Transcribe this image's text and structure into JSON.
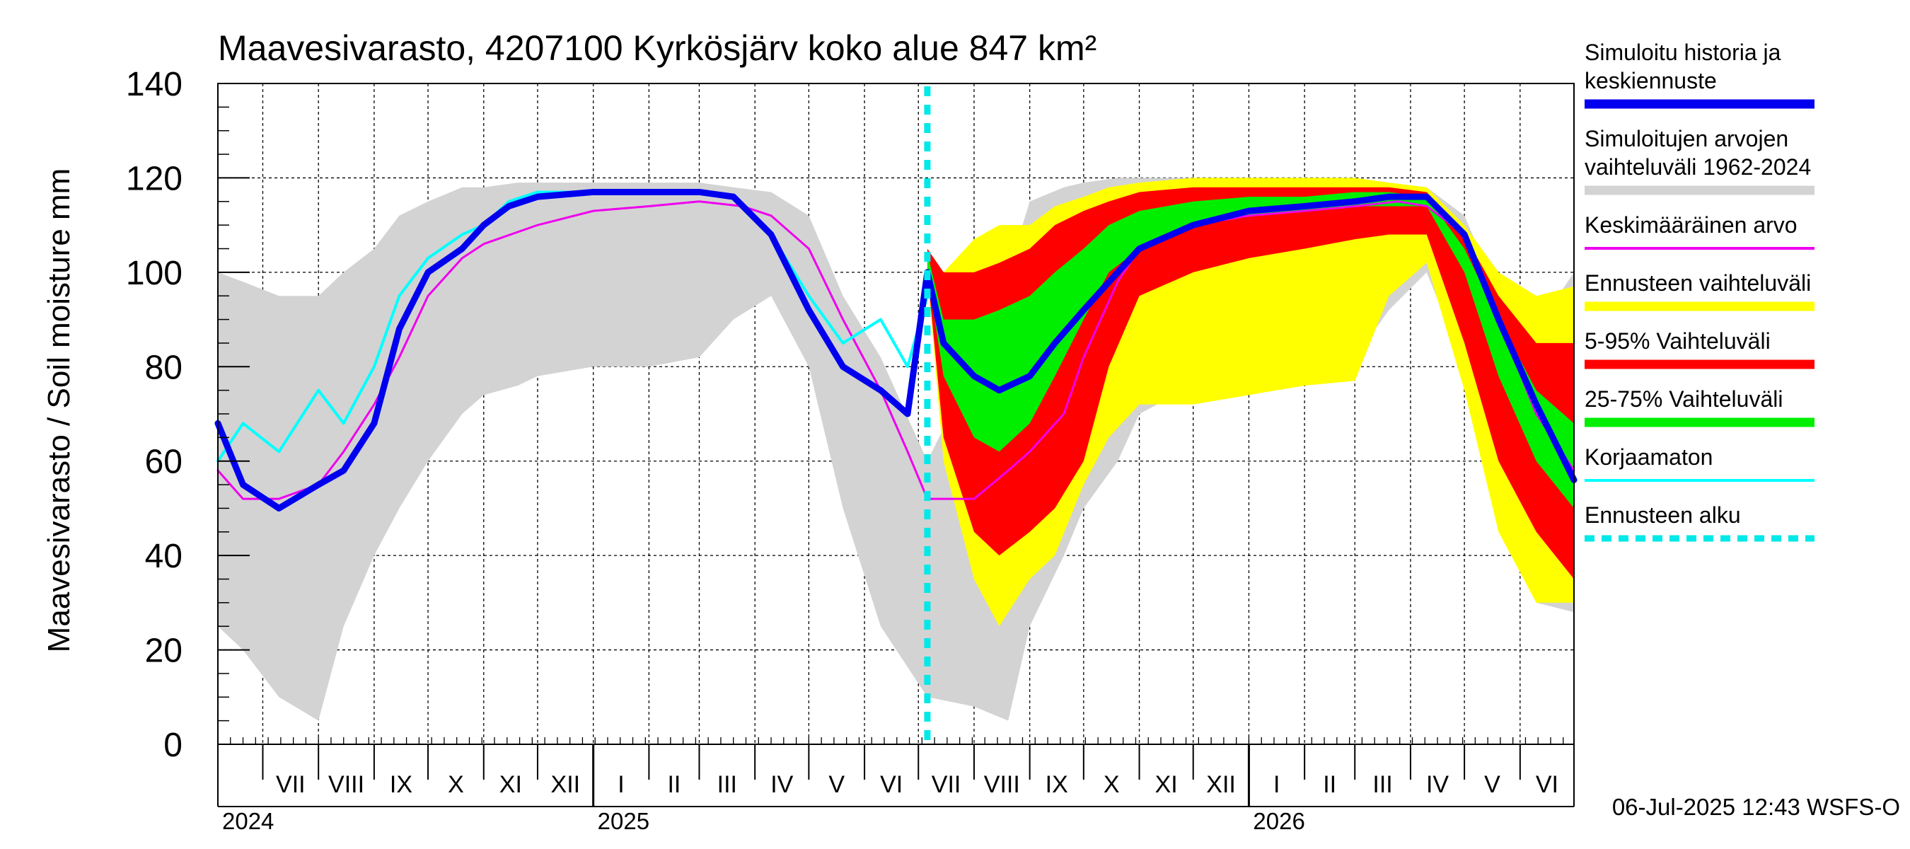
{
  "chart_data": {
    "type": "area",
    "title": "Maavesivarasto, 4207100 Kyrkösjärv koko alue 847 km²",
    "ylabel": "Maavesivarasto / Soil moisture   mm",
    "xlabel": "",
    "ylim": [
      0,
      140
    ],
    "yticks": [
      0,
      20,
      40,
      60,
      80,
      100,
      120,
      140
    ],
    "grid": true,
    "legend_placement": "right",
    "x_range": [
      "2024-06-06",
      "2026-07-01"
    ],
    "forecast_start": "2025-07-06",
    "footer": "06-Jul-2025 12:43 WSFS-O",
    "month_labels": [
      {
        "label": "VII",
        "start": "2024-07-01"
      },
      {
        "label": "VIII",
        "start": "2024-08-01"
      },
      {
        "label": "IX",
        "start": "2024-09-01"
      },
      {
        "label": "X",
        "start": "2024-10-01"
      },
      {
        "label": "XI",
        "start": "2024-11-01"
      },
      {
        "label": "XII",
        "start": "2024-12-01"
      },
      {
        "label": "I",
        "start": "2025-01-01"
      },
      {
        "label": "II",
        "start": "2025-02-01"
      },
      {
        "label": "III",
        "start": "2025-03-01"
      },
      {
        "label": "IV",
        "start": "2025-04-01"
      },
      {
        "label": "V",
        "start": "2025-05-01"
      },
      {
        "label": "VI",
        "start": "2025-06-01"
      },
      {
        "label": "VII",
        "start": "2025-07-01"
      },
      {
        "label": "VIII",
        "start": "2025-08-01"
      },
      {
        "label": "IX",
        "start": "2025-09-01"
      },
      {
        "label": "X",
        "start": "2025-10-01"
      },
      {
        "label": "XI",
        "start": "2025-11-01"
      },
      {
        "label": "XII",
        "start": "2025-12-01"
      },
      {
        "label": "I",
        "start": "2026-01-01"
      },
      {
        "label": "II",
        "start": "2026-02-01"
      },
      {
        "label": "III",
        "start": "2026-03-01"
      },
      {
        "label": "IV",
        "start": "2026-04-01"
      },
      {
        "label": "V",
        "start": "2026-05-01"
      },
      {
        "label": "VI",
        "start": "2026-06-01"
      }
    ],
    "year_labels": [
      {
        "label": "2024",
        "date": "2024-06-06"
      },
      {
        "label": "2025",
        "date": "2025-01-01"
      },
      {
        "label": "2026",
        "date": "2026-01-01"
      }
    ],
    "legend": [
      {
        "label": "Simuloitu historia ja\nkeskiennuste",
        "color": "#0000ee",
        "style": "thick"
      },
      {
        "label": "Simuloitujen arvojen\nvaihteluväli 1962-2024",
        "color": "#d3d3d3",
        "style": "thick"
      },
      {
        "label": "Keskimääräinen arvo",
        "color": "#ee00ee",
        "style": "thin"
      },
      {
        "label": "Ennusteen vaihteluväli",
        "color": "#ffff00",
        "style": "thick"
      },
      {
        "label": "5-95% Vaihteluväli",
        "color": "#ff0000",
        "style": "thick"
      },
      {
        "label": "25-75% Vaihteluväli",
        "color": "#00ee00",
        "style": "thick"
      },
      {
        "label": "Korjaamaton",
        "color": "#00ffff",
        "style": "thin"
      },
      {
        "label": "Ennusteen alku",
        "color": "#00e8e8",
        "style": "dashed"
      }
    ],
    "series": [
      {
        "key": "hist_range",
        "kind": "band",
        "color": "#d3d3d3",
        "x": [
          "2024-06-06",
          "2024-06-20",
          "2024-07-10",
          "2024-08-01",
          "2024-08-15",
          "2024-09-01",
          "2024-09-15",
          "2024-10-01",
          "2024-10-20",
          "2024-11-01",
          "2024-11-20",
          "2024-12-01",
          "2025-01-01",
          "2025-02-01",
          "2025-03-01",
          "2025-03-20",
          "2025-04-10",
          "2025-05-01",
          "2025-05-20",
          "2025-06-10",
          "2025-07-06",
          "2025-08-01",
          "2025-08-20",
          "2025-09-01",
          "2025-09-20",
          "2025-10-01",
          "2025-10-20",
          "2025-11-01",
          "2025-12-01",
          "2026-01-01",
          "2026-02-01",
          "2026-03-01",
          "2026-03-20",
          "2026-04-10",
          "2026-05-01",
          "2026-05-20",
          "2026-06-10",
          "2026-07-01"
        ],
        "low": [
          25,
          20,
          10,
          5,
          25,
          40,
          50,
          60,
          70,
          74,
          76,
          78,
          80,
          80,
          82,
          90,
          95,
          80,
          50,
          25,
          10,
          8,
          5,
          25,
          40,
          50,
          60,
          70,
          76,
          78,
          80,
          82,
          92,
          100,
          80,
          50,
          30,
          28
        ],
        "high": [
          100,
          98,
          95,
          95,
          100,
          105,
          112,
          115,
          118,
          118,
          119,
          119,
          119,
          119,
          119,
          118,
          117,
          112,
          95,
          82,
          60,
          80,
          100,
          115,
          118,
          119,
          120,
          120,
          120,
          120,
          120,
          120,
          119,
          118,
          112,
          95,
          88,
          100
        ]
      },
      {
        "key": "range_full",
        "kind": "band",
        "color": "#ffff00",
        "x": [
          "2025-07-06",
          "2025-07-15",
          "2025-08-01",
          "2025-08-15",
          "2025-09-01",
          "2025-09-15",
          "2025-10-01",
          "2025-10-15",
          "2025-11-01",
          "2025-12-01",
          "2026-01-01",
          "2026-02-01",
          "2026-03-01",
          "2026-03-20",
          "2026-04-10",
          "2026-05-01",
          "2026-05-20",
          "2026-06-10",
          "2026-07-01"
        ],
        "low": [
          100,
          60,
          35,
          25,
          35,
          40,
          55,
          65,
          72,
          72,
          74,
          76,
          77,
          95,
          102,
          75,
          45,
          30,
          30
        ],
        "high": [
          105,
          100,
          107,
          110,
          110,
          114,
          116,
          118,
          119,
          120,
          120,
          120,
          120,
          119,
          118,
          110,
          100,
          95,
          97
        ]
      },
      {
        "key": "p5_95",
        "kind": "band",
        "color": "#ff0000",
        "x": [
          "2025-07-06",
          "2025-07-15",
          "2025-08-01",
          "2025-08-15",
          "2025-09-01",
          "2025-09-15",
          "2025-10-01",
          "2025-10-15",
          "2025-11-01",
          "2025-12-01",
          "2026-01-01",
          "2026-02-01",
          "2026-03-01",
          "2026-03-20",
          "2026-04-10",
          "2026-05-01",
          "2026-05-20",
          "2026-06-10",
          "2026-07-01"
        ],
        "low": [
          100,
          65,
          45,
          40,
          45,
          50,
          60,
          80,
          95,
          100,
          103,
          105,
          107,
          108,
          108,
          85,
          60,
          45,
          35
        ],
        "high": [
          105,
          100,
          100,
          102,
          105,
          110,
          113,
          115,
          117,
          118,
          118,
          118,
          118,
          118,
          117,
          108,
          95,
          85,
          85
        ]
      },
      {
        "key": "p25_75",
        "kind": "band",
        "color": "#00ee00",
        "x": [
          "2025-07-06",
          "2025-07-15",
          "2025-08-01",
          "2025-08-15",
          "2025-09-01",
          "2025-09-15",
          "2025-10-01",
          "2025-10-15",
          "2025-11-01",
          "2025-12-01",
          "2026-01-01",
          "2026-02-01",
          "2026-03-01",
          "2026-03-20",
          "2026-04-10",
          "2026-05-01",
          "2026-05-20",
          "2026-06-10",
          "2026-07-01"
        ],
        "low": [
          100,
          78,
          65,
          62,
          68,
          78,
          90,
          100,
          105,
          110,
          112,
          113,
          114,
          114,
          114,
          100,
          78,
          60,
          50
        ],
        "high": [
          104,
          90,
          90,
          92,
          95,
          100,
          105,
          110,
          113,
          115,
          116,
          116,
          117,
          117,
          116,
          105,
          90,
          75,
          68
        ]
      },
      {
        "key": "mean",
        "kind": "line",
        "color": "#ee00ee",
        "width": 3,
        "x": [
          "2024-06-06",
          "2024-06-20",
          "2024-07-10",
          "2024-08-01",
          "2024-08-15",
          "2024-09-01",
          "2024-09-15",
          "2024-10-01",
          "2024-10-20",
          "2024-11-01",
          "2024-12-01",
          "2025-01-01",
          "2025-02-01",
          "2025-03-01",
          "2025-03-25",
          "2025-04-10",
          "2025-05-01",
          "2025-05-20",
          "2025-06-10",
          "2025-06-25",
          "2025-07-06",
          "2025-08-01",
          "2025-08-20",
          "2025-09-01",
          "2025-09-20",
          "2025-10-01",
          "2025-10-20",
          "2025-11-01",
          "2025-12-01",
          "2026-01-01",
          "2026-02-01",
          "2026-03-01",
          "2026-03-25",
          "2026-04-10",
          "2026-05-01",
          "2026-05-20",
          "2026-06-10",
          "2026-07-01"
        ],
        "y": [
          58,
          52,
          52,
          55,
          62,
          72,
          82,
          95,
          103,
          106,
          110,
          113,
          114,
          115,
          114,
          112,
          105,
          90,
          75,
          62,
          52,
          52,
          58,
          62,
          70,
          82,
          98,
          105,
          110,
          112,
          113,
          114,
          115,
          114,
          108,
          90,
          70,
          58
        ]
      },
      {
        "key": "uncorrected",
        "kind": "line",
        "color": "#00ffff",
        "width": 4,
        "x": [
          "2024-06-06",
          "2024-06-20",
          "2024-07-10",
          "2024-08-01",
          "2024-08-15",
          "2024-09-01",
          "2024-09-15",
          "2024-10-01",
          "2024-10-20",
          "2024-11-01",
          "2024-11-15",
          "2024-12-01",
          "2025-01-01",
          "2025-02-01",
          "2025-03-01",
          "2025-03-20",
          "2025-04-10",
          "2025-05-01",
          "2025-05-20",
          "2025-06-10",
          "2025-06-25",
          "2025-07-06"
        ],
        "y": [
          60,
          68,
          62,
          75,
          68,
          80,
          95,
          103,
          108,
          110,
          115,
          117,
          117,
          117,
          117,
          116,
          108,
          95,
          85,
          90,
          80,
          95
        ]
      },
      {
        "key": "simulated",
        "kind": "line",
        "color": "#0000ee",
        "width": 9,
        "x": [
          "2024-06-06",
          "2024-06-20",
          "2024-07-10",
          "2024-08-01",
          "2024-08-15",
          "2024-09-01",
          "2024-09-15",
          "2024-10-01",
          "2024-10-20",
          "2024-11-01",
          "2024-11-15",
          "2024-12-01",
          "2025-01-01",
          "2025-02-01",
          "2025-03-01",
          "2025-03-20",
          "2025-04-10",
          "2025-05-01",
          "2025-05-20",
          "2025-06-10",
          "2025-06-25",
          "2025-07-06",
          "2025-07-15",
          "2025-08-01",
          "2025-08-15",
          "2025-09-01",
          "2025-09-15",
          "2025-10-01",
          "2025-10-20",
          "2025-11-01",
          "2025-12-01",
          "2026-01-01",
          "2026-02-01",
          "2026-03-01",
          "2026-03-20",
          "2026-04-10",
          "2026-05-01",
          "2026-05-20",
          "2026-06-10",
          "2026-07-01"
        ],
        "y": [
          68,
          55,
          50,
          55,
          58,
          68,
          88,
          100,
          105,
          110,
          114,
          116,
          117,
          117,
          117,
          116,
          108,
          92,
          80,
          75,
          70,
          100,
          85,
          78,
          75,
          78,
          85,
          92,
          100,
          105,
          110,
          113,
          114,
          115,
          116,
          116,
          108,
          90,
          72,
          56
        ]
      }
    ]
  }
}
